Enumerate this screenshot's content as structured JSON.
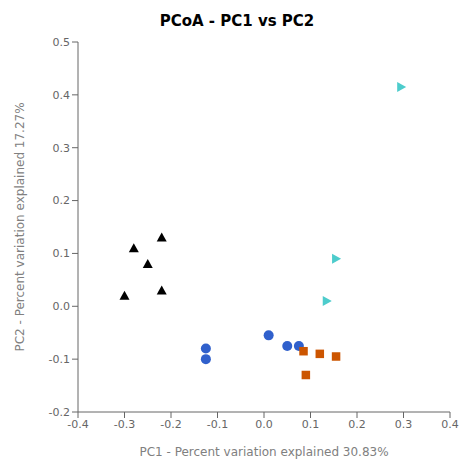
{
  "chart_data": {
    "type": "scatter",
    "title": "PCoA - PC1 vs PC2",
    "xlabel": "PC1 - Percent variation explained 30.83%",
    "ylabel": "PC2 - Percent variation explained 17.27%",
    "xlim": [
      -0.4,
      0.4
    ],
    "ylim": [
      -0.2,
      0.5
    ],
    "xticks": [
      -0.4,
      -0.3,
      -0.2,
      -0.1,
      {
        "value": 0,
        "label": "0.0"
      },
      0.1,
      0.2,
      0.3,
      0.4
    ],
    "yticks": [
      -0.2,
      -0.1,
      {
        "value": 0,
        "label": "0.0"
      },
      0.1,
      0.2,
      0.3,
      0.4,
      0.5
    ],
    "grid": false,
    "series": [
      {
        "color": "#000000",
        "marker": "triangle-up",
        "x": [
          -0.3,
          -0.28,
          -0.25,
          -0.22,
          -0.22
        ],
        "y": [
          0.02,
          0.11,
          0.08,
          0.13,
          0.03
        ]
      },
      {
        "color": "#4DCCCC",
        "marker": "triangle-right",
        "x": [
          0.295,
          0.155,
          0.135
        ],
        "y": [
          0.415,
          0.09,
          0.01
        ]
      },
      {
        "color": "#3060CC",
        "marker": "circle",
        "x": [
          -0.125,
          -0.125,
          0.01,
          0.05,
          0.075
        ],
        "y": [
          -0.08,
          -0.1,
          -0.055,
          -0.075,
          -0.075
        ]
      },
      {
        "color": "#CC5500",
        "marker": "square",
        "x": [
          0.085,
          0.09,
          0.12,
          0.155
        ],
        "y": [
          -0.085,
          -0.13,
          -0.09,
          -0.095
        ]
      }
    ]
  }
}
